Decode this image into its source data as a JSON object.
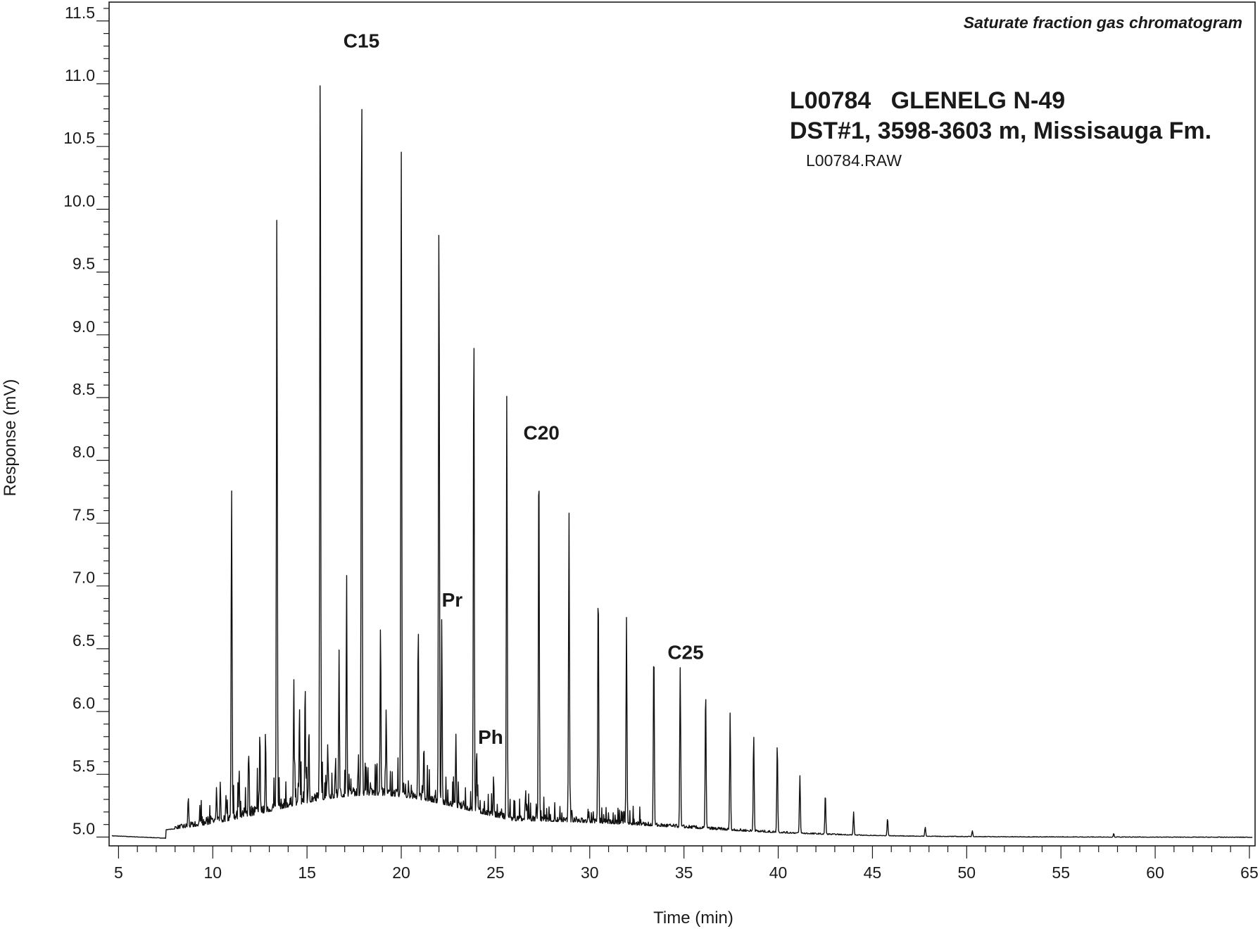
{
  "chart_data": {
    "type": "line",
    "title": "Saturate fraction gas chromatogram",
    "sample_id": "L00784   GLENELG N-49",
    "sample_info": "DST#1, 3598-3603 m, Missisauga Fm.",
    "filename": "L00784.RAW",
    "xlabel": "Time (min)",
    "ylabel": "Response (mV)",
    "xlim": [
      4.5,
      65.3
    ],
    "ylim": [
      4.93,
      11.65
    ],
    "x_ticks": [
      5,
      10,
      15,
      20,
      25,
      30,
      35,
      40,
      45,
      50,
      55,
      60,
      65
    ],
    "y_ticks": [
      "5.0",
      "5.5",
      "6.0",
      "6.5",
      "7.0",
      "7.5",
      "8.0",
      "8.5",
      "9.0",
      "9.5",
      "10.0",
      "10.5",
      "11.0",
      "11.5"
    ],
    "grid": false,
    "series": [
      {
        "major_peaks": [
          {
            "x": 8.7,
            "y": 5.32
          },
          {
            "x": 11.0,
            "y": 7.77
          },
          {
            "x": 13.4,
            "y": 9.94
          },
          {
            "x": 15.7,
            "y": 11.35
          },
          {
            "x": 17.9,
            "y": 11.22
          },
          {
            "x": 20.0,
            "y": 10.47
          },
          {
            "x": 22.0,
            "y": 9.96
          },
          {
            "x": 23.85,
            "y": 9.13
          },
          {
            "x": 25.6,
            "y": 8.52
          },
          {
            "x": 27.3,
            "y": 8.1
          },
          {
            "x": 28.9,
            "y": 7.58
          },
          {
            "x": 30.45,
            "y": 7.03
          },
          {
            "x": 31.95,
            "y": 6.75
          },
          {
            "x": 33.4,
            "y": 6.53
          },
          {
            "x": 34.8,
            "y": 6.35
          },
          {
            "x": 36.15,
            "y": 6.19
          },
          {
            "x": 37.45,
            "y": 6.0
          },
          {
            "x": 38.7,
            "y": 5.82
          },
          {
            "x": 39.95,
            "y": 5.75
          },
          {
            "x": 41.15,
            "y": 5.49
          },
          {
            "x": 42.5,
            "y": 5.35
          },
          {
            "x": 44.0,
            "y": 5.2
          },
          {
            "x": 45.8,
            "y": 5.15
          },
          {
            "x": 47.8,
            "y": 5.08
          },
          {
            "x": 50.3,
            "y": 5.05
          }
        ],
        "minor_peaks": [
          {
            "x": 9.3,
            "y": 5.15
          },
          {
            "x": 10.2,
            "y": 5.4
          },
          {
            "x": 10.4,
            "y": 5.44
          },
          {
            "x": 11.4,
            "y": 5.54
          },
          {
            "x": 11.9,
            "y": 5.7
          },
          {
            "x": 12.5,
            "y": 5.87
          },
          {
            "x": 12.8,
            "y": 5.86
          },
          {
            "x": 14.3,
            "y": 6.28
          },
          {
            "x": 14.6,
            "y": 6.06
          },
          {
            "x": 14.9,
            "y": 6.26
          },
          {
            "x": 15.1,
            "y": 5.9
          },
          {
            "x": 16.1,
            "y": 5.75
          },
          {
            "x": 16.7,
            "y": 6.49
          },
          {
            "x": 17.1,
            "y": 7.1
          },
          {
            "x": 18.9,
            "y": 6.73
          },
          {
            "x": 19.2,
            "y": 6.03
          },
          {
            "x": 20.9,
            "y": 6.75
          },
          {
            "x": 21.2,
            "y": 5.75
          },
          {
            "x": 22.15,
            "y": 6.78
          },
          {
            "x": 22.9,
            "y": 5.82
          },
          {
            "x": 24.0,
            "y": 5.72
          },
          {
            "x": 24.9,
            "y": 5.5
          },
          {
            "x": 26.6,
            "y": 5.38
          },
          {
            "x": 57.8,
            "y": 5.03
          }
        ]
      }
    ],
    "annotations": [
      {
        "text": "C15",
        "x": 17.9,
        "y": 11.22
      },
      {
        "text": "Pr",
        "x": 22.15,
        "y": 6.78
      },
      {
        "text": "Ph",
        "x": 24.0,
        "y": 5.72
      },
      {
        "text": "C20",
        "x": 27.3,
        "y": 8.1
      },
      {
        "text": "C25",
        "x": 34.8,
        "y": 6.35
      }
    ]
  }
}
